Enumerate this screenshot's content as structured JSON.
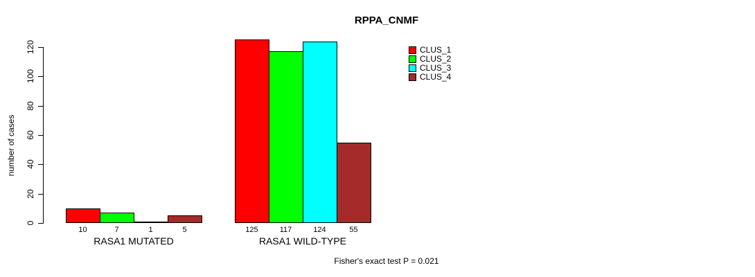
{
  "page": {
    "background": "#ffffff",
    "text_color": "#000000"
  },
  "chart_data": {
    "type": "bar",
    "title": "RPPA_CNMF",
    "ylabel": "number of cases",
    "xlabel": "",
    "categories": [
      "RASA1 MUTATED",
      "RASA1 WILD-TYPE"
    ],
    "series": [
      {
        "name": "CLUS_1",
        "color": "#ff0000",
        "values": [
          10,
          125
        ]
      },
      {
        "name": "CLUS_2",
        "color": "#00ff00",
        "values": [
          7,
          117
        ]
      },
      {
        "name": "CLUS_3",
        "color": "#00ffff",
        "values": [
          1,
          124
        ]
      },
      {
        "name": "CLUS_4",
        "color": "#a52a2a",
        "values": [
          5,
          55
        ]
      }
    ],
    "yticks": [
      0,
      20,
      40,
      60,
      80,
      100,
      120
    ],
    "ylim": [
      0,
      120
    ],
    "bar_value_labels_shown": true,
    "grid": "off",
    "legend_position": "right-of-plot-top",
    "annotation": "Fisher's exact test P = 0.021"
  }
}
